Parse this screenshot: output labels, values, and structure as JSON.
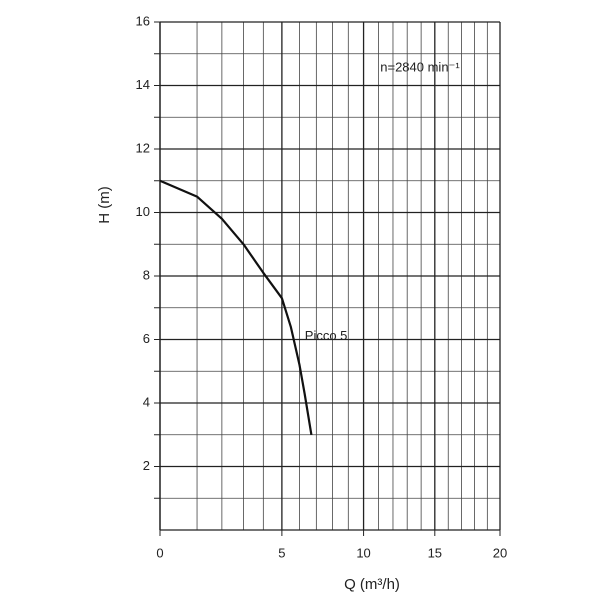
{
  "chart_data": {
    "type": "line",
    "x_label": "Q (m³/h)",
    "y_label": "H (m)",
    "annotation": "n=2840 min⁻¹",
    "xscale": "power",
    "xexponent": 0.74,
    "xlim": [
      0,
      20
    ],
    "xticks": [
      0,
      5,
      10,
      15,
      20
    ],
    "xminor": [
      1,
      2,
      3,
      4,
      6,
      7,
      8,
      9,
      11,
      12,
      13,
      14,
      16,
      17,
      18,
      19
    ],
    "ylim": [
      0,
      16
    ],
    "yticks": [
      2,
      4,
      6,
      8,
      10,
      12,
      14,
      16
    ],
    "yminor": [
      1,
      3,
      5,
      7,
      9,
      11,
      13,
      15
    ],
    "grid": true,
    "series": [
      {
        "name": "Picco 5",
        "color": "#111111",
        "x": [
          0,
          1,
          2,
          3,
          4,
          5,
          5.5,
          6,
          6.3,
          6.7
        ],
        "values": [
          11,
          10.5,
          9.8,
          9,
          8.1,
          7.3,
          6.4,
          5.2,
          4.3,
          3
        ]
      }
    ]
  }
}
